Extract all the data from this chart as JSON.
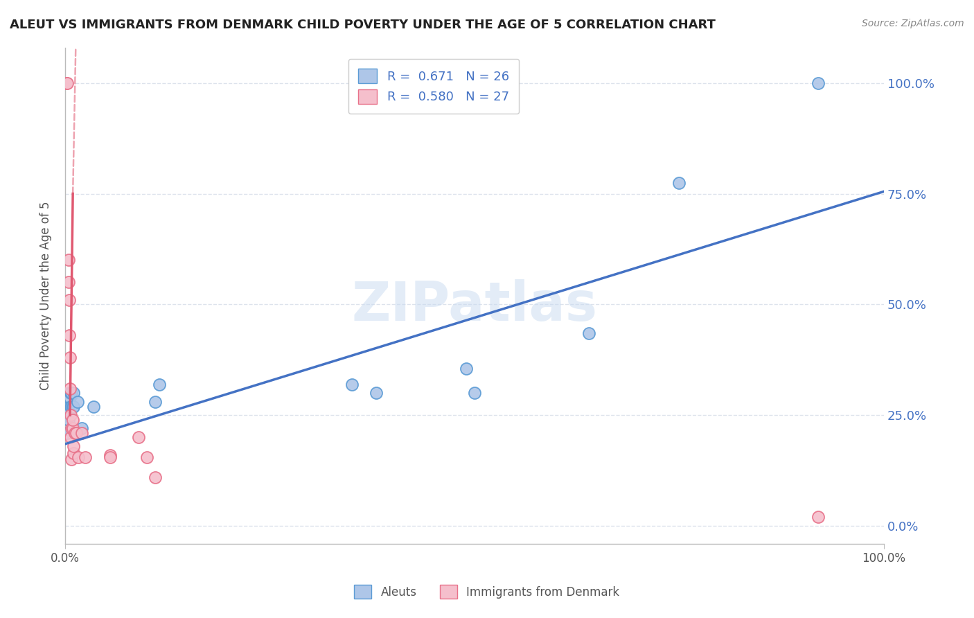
{
  "title": "ALEUT VS IMMIGRANTS FROM DENMARK CHILD POVERTY UNDER THE AGE OF 5 CORRELATION CHART",
  "source": "Source: ZipAtlas.com",
  "ylabel": "Child Poverty Under the Age of 5",
  "xlim": [
    0,
    1.0
  ],
  "ylim": [
    -0.04,
    1.08
  ],
  "yticks": [
    0.0,
    0.25,
    0.5,
    0.75,
    1.0
  ],
  "ytick_labels": [
    "0.0%",
    "25.0%",
    "50.0%",
    "75.0%",
    "100.0%"
  ],
  "aleuts_x": [
    0.003,
    0.004,
    0.004,
    0.005,
    0.005,
    0.006,
    0.006,
    0.007,
    0.007,
    0.008,
    0.008,
    0.009,
    0.01,
    0.01,
    0.015,
    0.02,
    0.035,
    0.11,
    0.115,
    0.35,
    0.38,
    0.49,
    0.5,
    0.64,
    0.75,
    0.92
  ],
  "aleuts_y": [
    0.21,
    0.24,
    0.27,
    0.27,
    0.3,
    0.26,
    0.29,
    0.27,
    0.3,
    0.27,
    0.3,
    0.27,
    0.27,
    0.3,
    0.28,
    0.22,
    0.27,
    0.28,
    0.32,
    0.32,
    0.3,
    0.355,
    0.3,
    0.435,
    0.775,
    1.0
  ],
  "denmark_x": [
    0.002,
    0.003,
    0.004,
    0.004,
    0.005,
    0.005,
    0.006,
    0.006,
    0.007,
    0.007,
    0.008,
    0.008,
    0.009,
    0.009,
    0.01,
    0.01,
    0.012,
    0.014,
    0.016,
    0.02,
    0.025,
    0.055,
    0.055,
    0.09,
    0.1,
    0.11,
    0.92
  ],
  "denmark_y": [
    1.0,
    1.0,
    0.6,
    0.55,
    0.51,
    0.43,
    0.38,
    0.31,
    0.25,
    0.2,
    0.15,
    0.22,
    0.22,
    0.24,
    0.165,
    0.18,
    0.21,
    0.21,
    0.155,
    0.21,
    0.155,
    0.16,
    0.155,
    0.2,
    0.155,
    0.11,
    0.02
  ],
  "aleut_color": "#aec6e8",
  "denmark_color": "#f5bfcc",
  "aleut_edge_color": "#5b9bd5",
  "denmark_edge_color": "#e8728a",
  "regression_blue_color": "#4472c4",
  "regression_pink_color": "#e05870",
  "watermark_color": "#c8daf0",
  "background_color": "#ffffff",
  "grid_color": "#dde3ec",
  "legend_R_blue": "R =  0.671",
  "legend_N_blue": "N = 26",
  "legend_R_pink": "R =  0.580",
  "legend_N_pink": "N = 27",
  "blue_line_x0": 0.0,
  "blue_line_y0": 0.185,
  "blue_line_x1": 1.0,
  "blue_line_y1": 0.755,
  "pink_line_solid_x0": 0.0095,
  "pink_line_solid_y0": 0.75,
  "pink_line_solid_x1": 0.006,
  "pink_line_solid_y1": 0.25,
  "pink_line_dash_x0": 0.0095,
  "pink_line_dash_y0": 0.75,
  "pink_line_dash_x1": 0.013,
  "pink_line_dash_y1": 1.08
}
